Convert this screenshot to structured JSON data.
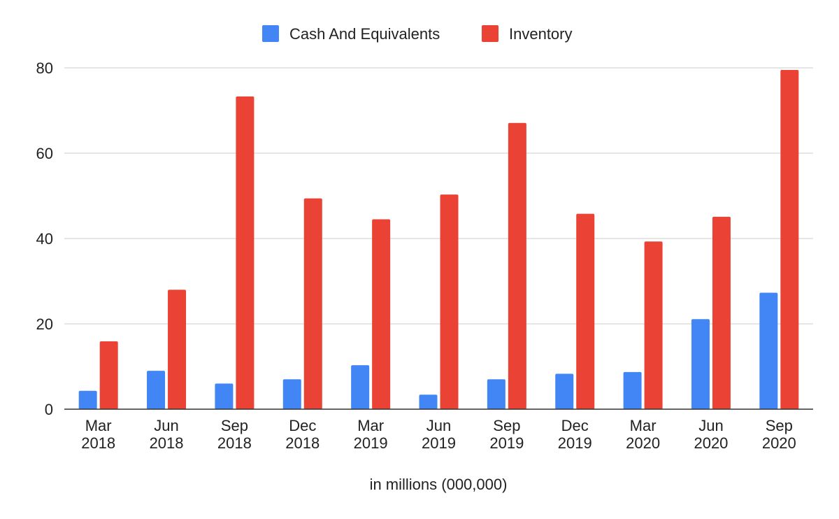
{
  "chart_data": {
    "type": "bar",
    "title": "",
    "xlabel": "in millions (000,000)",
    "ylabel": "",
    "ylim": [
      0,
      80
    ],
    "yticks": [
      "0",
      "20",
      "40",
      "60",
      "80"
    ],
    "grid": true,
    "legend_position": "top-center",
    "categories": [
      [
        "Mar",
        "2018"
      ],
      [
        "Jun",
        "2018"
      ],
      [
        "Sep",
        "2018"
      ],
      [
        "Dec",
        "2018"
      ],
      [
        "Mar",
        "2019"
      ],
      [
        "Jun",
        "2019"
      ],
      [
        "Sep",
        "2019"
      ],
      [
        "Dec",
        "2019"
      ],
      [
        "Mar",
        "2020"
      ],
      [
        "Jun",
        "2020"
      ],
      [
        "Sep",
        "2020"
      ]
    ],
    "series": [
      {
        "name": "Cash And Equivalents",
        "color": "#4285f4",
        "values": [
          4.3,
          9.0,
          6.0,
          7.0,
          10.3,
          3.4,
          7.0,
          8.3,
          8.7,
          21.1,
          27.3
        ]
      },
      {
        "name": "Inventory",
        "color": "#ea4335",
        "values": [
          15.9,
          28.0,
          73.3,
          49.4,
          44.5,
          50.3,
          67.1,
          45.8,
          39.3,
          45.1,
          79.5
        ]
      }
    ]
  }
}
